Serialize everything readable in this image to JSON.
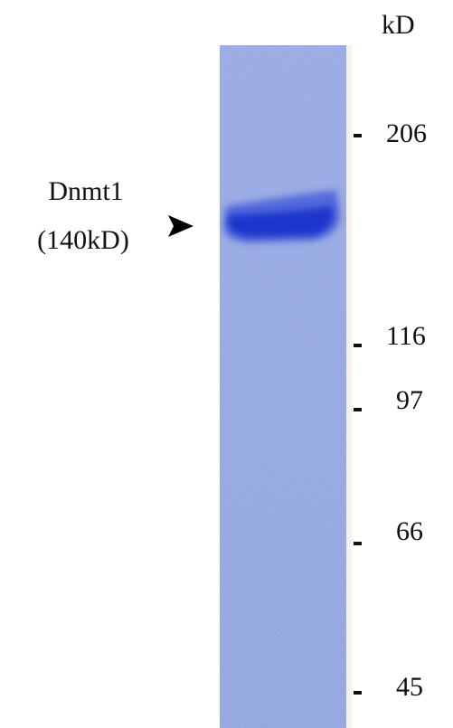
{
  "unit_label": "kD",
  "markers": [
    "206",
    "116",
    "97",
    "66",
    "45"
  ],
  "band": {
    "name": "Dnmt1",
    "size": "(140kD)"
  }
}
